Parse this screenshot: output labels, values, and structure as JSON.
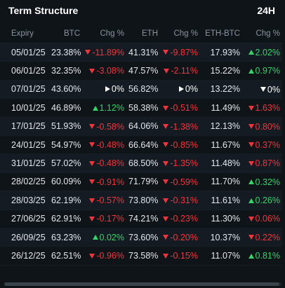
{
  "panel": {
    "title": "Term Structure",
    "period": "24H"
  },
  "columns": {
    "expiry": "Expiry",
    "btc": "BTC",
    "btc_chg": "Chg %",
    "eth": "ETH",
    "eth_chg": "Chg %",
    "ethbtc": "ETH-BTC",
    "ethbtc_chg": "Chg %"
  },
  "colors": {
    "up": "#35d36a",
    "down": "#f0353d",
    "flat": "#ffffff",
    "background": "#0f1419"
  },
  "rows": [
    {
      "expiry": "05/01/25",
      "btc": "23.38%",
      "btc_chg": "-11.89%",
      "btc_dir": "down",
      "eth": "41.31%",
      "eth_chg": "-9.87%",
      "eth_dir": "down",
      "ethbtc": "17.93%",
      "ethbtc_chg": "2.02%",
      "ethbtc_dir": "up"
    },
    {
      "expiry": "06/01/25",
      "btc": "32.35%",
      "btc_chg": "-3.08%",
      "btc_dir": "down",
      "eth": "47.57%",
      "eth_chg": "-2.11%",
      "eth_dir": "down",
      "ethbtc": "15.22%",
      "ethbtc_chg": "0.97%",
      "ethbtc_dir": "up"
    },
    {
      "expiry": "07/01/25",
      "btc": "43.60%",
      "btc_chg": "0%",
      "btc_dir": "flat",
      "eth": "56.82%",
      "eth_chg": "0%",
      "eth_dir": "flat",
      "ethbtc": "13.22%",
      "ethbtc_chg": "0%",
      "ethbtc_dir": "down-white"
    },
    {
      "expiry": "10/01/25",
      "btc": "46.89%",
      "btc_chg": "1.12%",
      "btc_dir": "up",
      "eth": "58.38%",
      "eth_chg": "-0.51%",
      "eth_dir": "down",
      "ethbtc": "11.49%",
      "ethbtc_chg": "1.63%",
      "ethbtc_dir": "down"
    },
    {
      "expiry": "17/01/25",
      "btc": "51.93%",
      "btc_chg": "-0.58%",
      "btc_dir": "down",
      "eth": "64.06%",
      "eth_chg": "-1.38%",
      "eth_dir": "down",
      "ethbtc": "12.13%",
      "ethbtc_chg": "0.80%",
      "ethbtc_dir": "down"
    },
    {
      "expiry": "24/01/25",
      "btc": "54.97%",
      "btc_chg": "-0.48%",
      "btc_dir": "down",
      "eth": "66.64%",
      "eth_chg": "-0.85%",
      "eth_dir": "down",
      "ethbtc": "11.67%",
      "ethbtc_chg": "0.37%",
      "ethbtc_dir": "down"
    },
    {
      "expiry": "31/01/25",
      "btc": "57.02%",
      "btc_chg": "-0.48%",
      "btc_dir": "down",
      "eth": "68.50%",
      "eth_chg": "-1.35%",
      "eth_dir": "down",
      "ethbtc": "11.48%",
      "ethbtc_chg": "0.87%",
      "ethbtc_dir": "down"
    },
    {
      "expiry": "28/02/25",
      "btc": "60.09%",
      "btc_chg": "-0.91%",
      "btc_dir": "down",
      "eth": "71.79%",
      "eth_chg": "-0.59%",
      "eth_dir": "down",
      "ethbtc": "11.70%",
      "ethbtc_chg": "0.32%",
      "ethbtc_dir": "up"
    },
    {
      "expiry": "28/03/25",
      "btc": "62.19%",
      "btc_chg": "-0.57%",
      "btc_dir": "down",
      "eth": "73.80%",
      "eth_chg": "-0.31%",
      "eth_dir": "down",
      "ethbtc": "11.61%",
      "ethbtc_chg": "0.26%",
      "ethbtc_dir": "up"
    },
    {
      "expiry": "27/06/25",
      "btc": "62.91%",
      "btc_chg": "-0.17%",
      "btc_dir": "down",
      "eth": "74.21%",
      "eth_chg": "-0.23%",
      "eth_dir": "down",
      "ethbtc": "11.30%",
      "ethbtc_chg": "0.06%",
      "ethbtc_dir": "down"
    },
    {
      "expiry": "26/09/25",
      "btc": "63.23%",
      "btc_chg": "0.02%",
      "btc_dir": "up",
      "eth": "73.60%",
      "eth_chg": "-0.20%",
      "eth_dir": "down",
      "ethbtc": "10.37%",
      "ethbtc_chg": "0.22%",
      "ethbtc_dir": "down"
    },
    {
      "expiry": "26/12/25",
      "btc": "62.51%",
      "btc_chg": "-0.96%",
      "btc_dir": "down",
      "eth": "73.58%",
      "eth_chg": "-0.15%",
      "eth_dir": "down",
      "ethbtc": "11.07%",
      "ethbtc_chg": "0.81%",
      "ethbtc_dir": "up"
    }
  ]
}
